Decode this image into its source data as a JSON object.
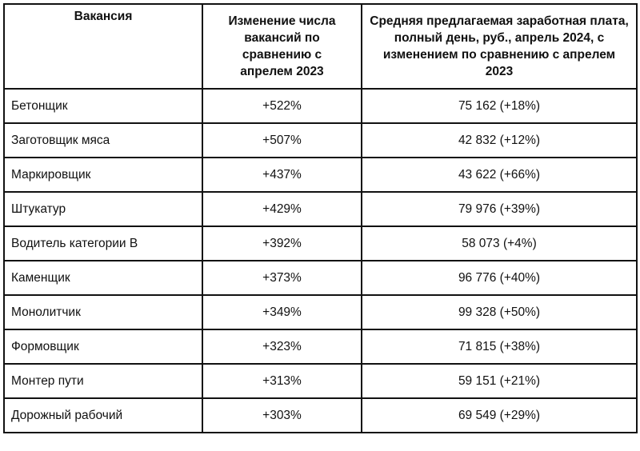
{
  "table": {
    "headers": [
      "Вакансия",
      "Изменение числа вакансий по сравнению с апрелем 2023",
      "Средняя предлагаемая заработная плата, полный день, руб., апрель 2024, с изменением по сравнению с апрелем 2023"
    ],
    "rows": [
      [
        "Бетонщик",
        "+522%",
        "75 162 (+18%)"
      ],
      [
        "Заготовщик мяса",
        "+507%",
        "42 832 (+12%)"
      ],
      [
        "Маркировщик",
        "+437%",
        "43 622 (+66%)"
      ],
      [
        "Штукатур",
        "+429%",
        "79 976 (+39%)"
      ],
      [
        "Водитель категории В",
        "+392%",
        "58 073 (+4%)"
      ],
      [
        "Каменщик",
        "+373%",
        "96 776 (+40%)"
      ],
      [
        "Монолитчик",
        "+349%",
        "99 328 (+50%)"
      ],
      [
        "Формовщик",
        "+323%",
        "71 815 (+38%)"
      ],
      [
        "Монтер пути",
        "+313%",
        "59 151 (+21%)"
      ],
      [
        "Дорожный рабочий",
        "+303%",
        "69 549 (+29%)"
      ]
    ]
  }
}
